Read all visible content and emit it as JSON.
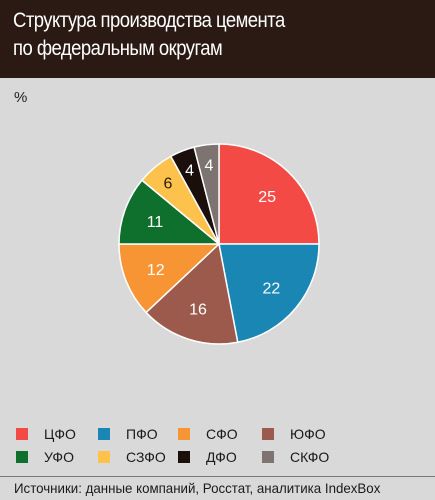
{
  "header": {
    "title_line1": "Структура производства цемента",
    "title_line2": "по федеральным округам"
  },
  "unit_label": "%",
  "chart_data": {
    "type": "pie",
    "title": "Структура производства цемента по федеральным округам",
    "unit": "%",
    "start_angle": "12 o'clock",
    "direction": "clockwise",
    "slices": [
      {
        "label": "ЦФО",
        "value": 25,
        "color": "#f44a45"
      },
      {
        "label": "ПФО",
        "value": 22,
        "color": "#1a86b3"
      },
      {
        "label": "ЮФО",
        "value": 16,
        "color": "#9c5a4c"
      },
      {
        "label": "СФО",
        "value": 12,
        "color": "#f79535"
      },
      {
        "label": "УФО",
        "value": 11,
        "color": "#0f6f2d"
      },
      {
        "label": "СЗФО",
        "value": 6,
        "color": "#fcc24b"
      },
      {
        "label": "ДФО",
        "value": 4,
        "color": "#1b0f0c"
      },
      {
        "label": "СКФО",
        "value": 4,
        "color": "#7d7471"
      }
    ],
    "legend_placement": "bottom",
    "legend_order": [
      "ЦФО",
      "ПФО",
      "СФО",
      "ЮФО",
      "УФО",
      "СЗФО",
      "ДФО",
      "СКФО"
    ]
  },
  "source": "Источники: данные компаний, Росстат, аналитика IndexBox"
}
